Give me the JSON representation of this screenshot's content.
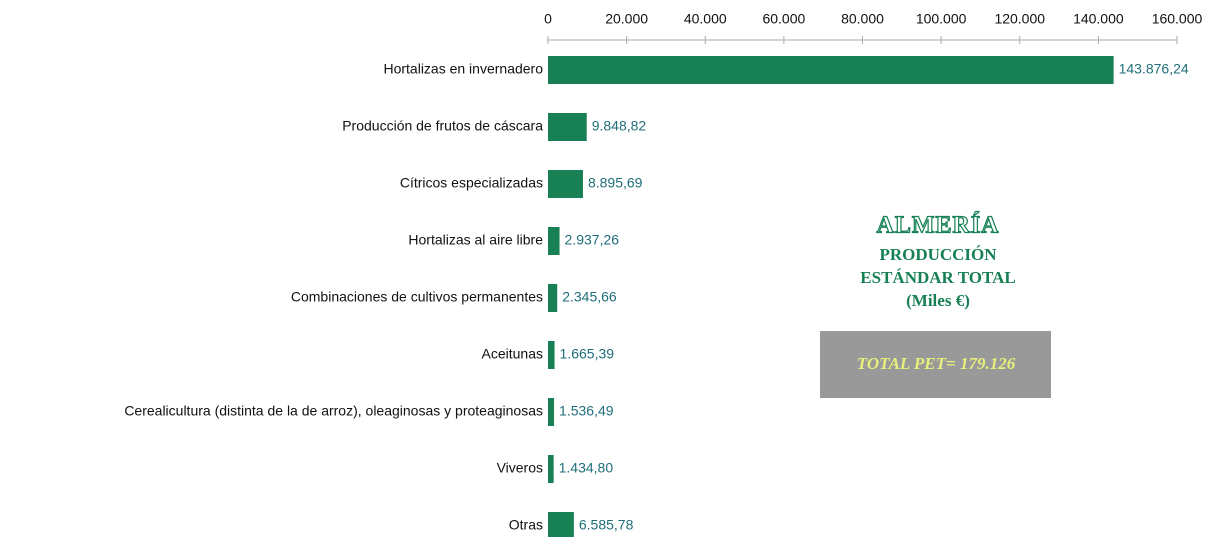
{
  "chart_data": {
    "type": "hbar",
    "title": "ALMERÍA",
    "subtitle": [
      "PRODUCCIÓN",
      "ESTÁNDAR TOTAL",
      "(Miles €)"
    ],
    "annotation": "TOTAL PET= 179.126",
    "categories": [
      "Hortalizas en invernadero",
      "Producción de frutos de cáscara",
      "Cítricos especializadas",
      "Hortalizas al aire libre",
      "Combinaciones de cultivos permanentes",
      "Aceitunas",
      "Cerealicultura (distinta de la de arroz), oleaginosas y proteaginosas",
      "Viveros",
      "Otras"
    ],
    "values": [
      143876.24,
      9848.82,
      8895.69,
      2937.26,
      2345.66,
      1665.39,
      1536.49,
      1434.8,
      6585.78
    ],
    "value_labels": [
      "143.876,24",
      "9.848,82",
      "8.895,69",
      "2.937,26",
      "2.345,66",
      "1.665,39",
      "1.536,49",
      "1.434,80",
      "6.585,78"
    ],
    "color": "#178055",
    "xlim": [
      0,
      160000
    ],
    "xticks": [
      0,
      {
        "value": 20000,
        "label": "20.000"
      },
      {
        "value": 40000,
        "label": "40.000"
      },
      {
        "value": 60000,
        "label": "60.000"
      },
      {
        "value": 80000,
        "label": "80.000"
      },
      {
        "value": 100000,
        "label": "100.000"
      },
      {
        "value": 120000,
        "label": "120.000"
      },
      {
        "value": 140000,
        "label": "140.000"
      },
      {
        "value": 160000,
        "label": "160.000"
      }
    ]
  }
}
